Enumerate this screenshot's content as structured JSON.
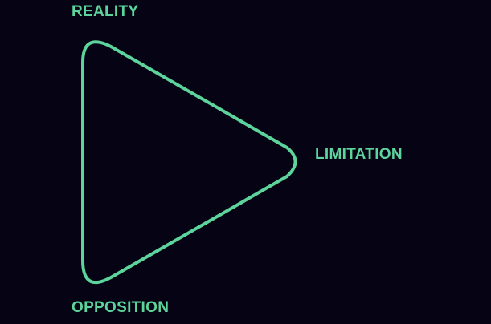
{
  "diagram": {
    "shape": "rounded-triangle",
    "stroke_color": "#5cd49b",
    "background_color": "#050314",
    "labels": {
      "top": "REALITY",
      "right": "LIMITATION",
      "bottom": "OPPOSITION"
    }
  }
}
